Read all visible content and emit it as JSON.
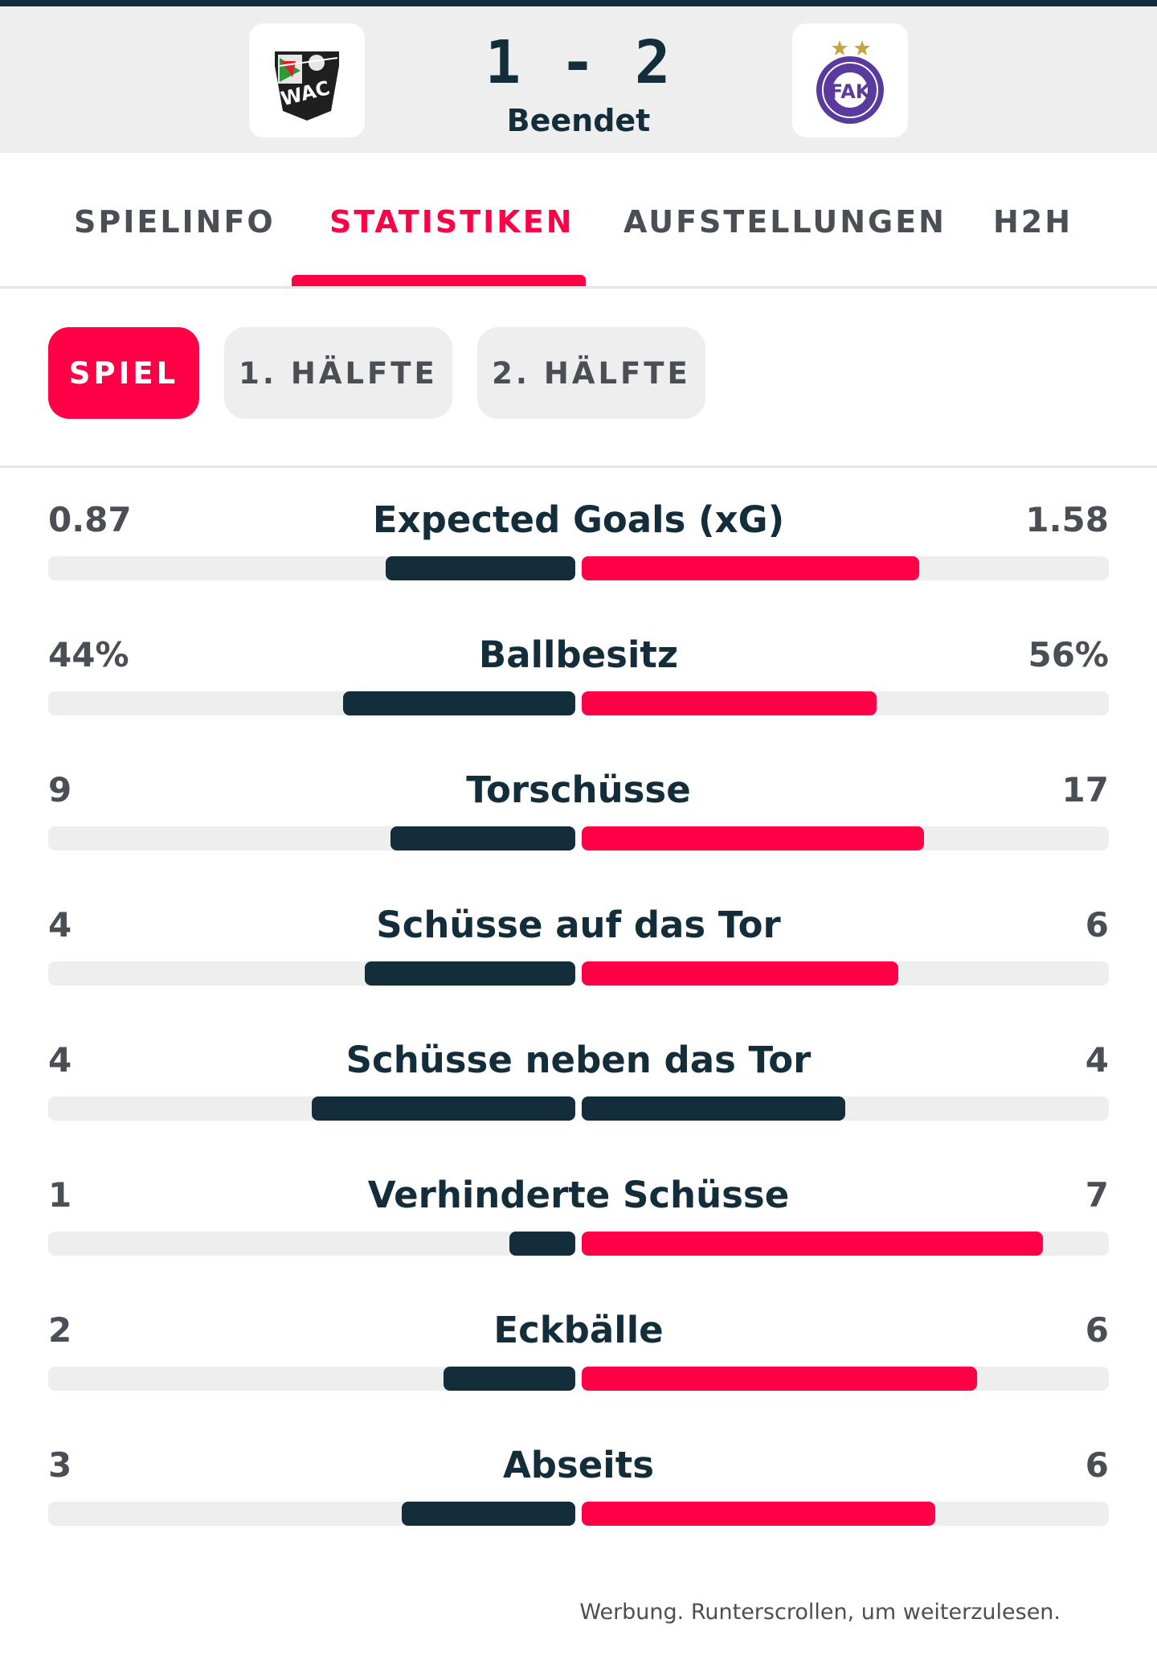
{
  "match": {
    "home_team": "WAC",
    "away_team": "FAK",
    "score": "1 - 2",
    "status": "Beendet"
  },
  "tabs": [
    {
      "label": "SPIELINFO",
      "active": false
    },
    {
      "label": "STATISTIKEN",
      "active": true
    },
    {
      "label": "AUFSTELLUNGEN",
      "active": false
    },
    {
      "label": "H2H",
      "active": false
    }
  ],
  "filters": [
    {
      "label": "SPIEL",
      "active": true
    },
    {
      "label": "1. HÄLFTE",
      "active": false
    },
    {
      "label": "2. HÄLFTE",
      "active": false
    }
  ],
  "stats": [
    {
      "label": "Expected Goals (xG)",
      "home": "0.87",
      "away": "1.58",
      "home_share": 0.36,
      "away_share": 0.64,
      "home_color": "#132e3a",
      "away_color": "#ff0046"
    },
    {
      "label": "Ballbesitz",
      "home": "44%",
      "away": "56%",
      "home_share": 0.44,
      "away_share": 0.56,
      "home_color": "#132e3a",
      "away_color": "#ff0046"
    },
    {
      "label": "Torschüsse",
      "home": "9",
      "away": "17",
      "home_share": 0.35,
      "away_share": 0.65,
      "home_color": "#132e3a",
      "away_color": "#ff0046"
    },
    {
      "label": "Schüsse auf das Tor",
      "home": "4",
      "away": "6",
      "home_share": 0.4,
      "away_share": 0.6,
      "home_color": "#132e3a",
      "away_color": "#ff0046"
    },
    {
      "label": "Schüsse neben das Tor",
      "home": "4",
      "away": "4",
      "home_share": 0.5,
      "away_share": 0.5,
      "home_color": "#132e3a",
      "away_color": "#132e3a"
    },
    {
      "label": "Verhinderte Schüsse",
      "home": "1",
      "away": "7",
      "home_share": 0.125,
      "away_share": 0.875,
      "home_color": "#132e3a",
      "away_color": "#ff0046"
    },
    {
      "label": "Eckbälle",
      "home": "2",
      "away": "6",
      "home_share": 0.25,
      "away_share": 0.75,
      "home_color": "#132e3a",
      "away_color": "#ff0046"
    },
    {
      "label": "Abseits",
      "home": "3",
      "away": "6",
      "home_share": 0.33,
      "away_share": 0.67,
      "home_color": "#132e3a",
      "away_color": "#ff0046"
    }
  ],
  "ad_notice": "Werbung. Runterscrollen, um weiterzulesen.",
  "colors": {
    "accent": "#ff0046",
    "dark": "#132e3a",
    "track": "#eeeeee"
  }
}
